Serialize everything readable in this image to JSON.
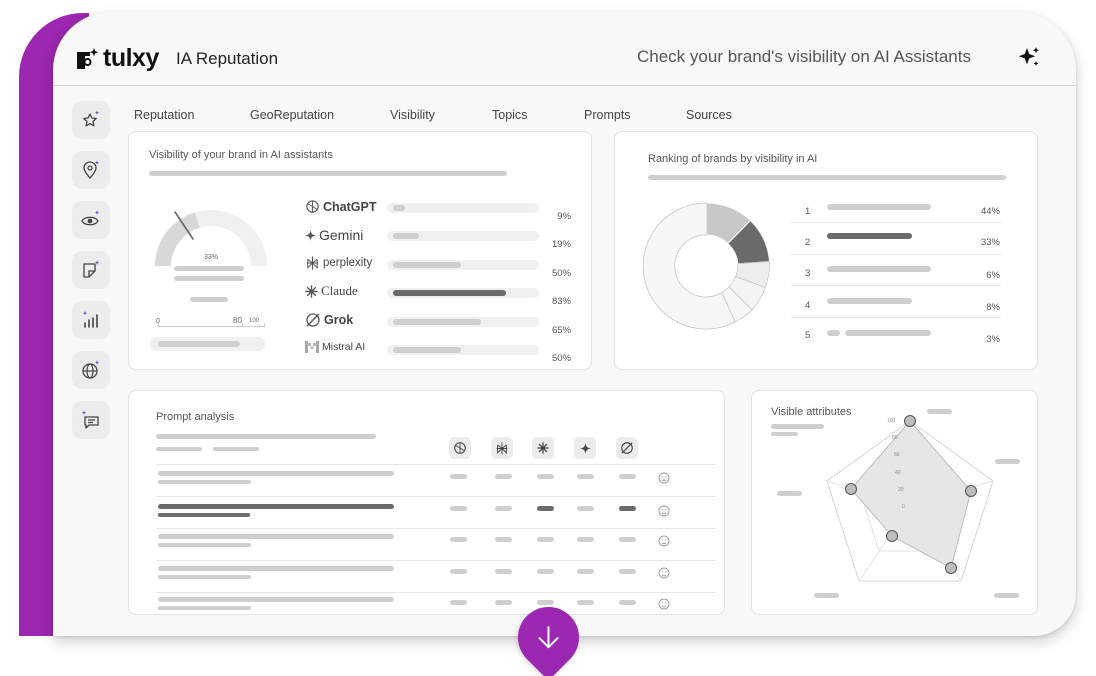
{
  "brand": {
    "logo_text": "tulxy",
    "product_name": "IA Reputation",
    "tagline": "Check your brand's visibility on AI Assistants",
    "accent_color": "#9c27b0"
  },
  "sidebar": {
    "items": [
      {
        "icon": "star-sparkle-icon"
      },
      {
        "icon": "location-pin-icon"
      },
      {
        "icon": "eye-icon"
      },
      {
        "icon": "sticker-icon"
      },
      {
        "icon": "bar-chart-icon"
      },
      {
        "icon": "globe-icon"
      },
      {
        "icon": "chat-icon"
      }
    ]
  },
  "tabs": [
    "Reputation",
    "GeoReputation",
    "Visibility",
    "Topics",
    "Prompts",
    "Sources"
  ],
  "visibility_card": {
    "title": "Visibility of your brand in AI assistants",
    "gauge": {
      "value_label": "33%",
      "scale_min": "0",
      "scale_mark": "80",
      "scale_max": "100"
    },
    "assistants": [
      {
        "name": "ChatGPT",
        "icon": "chatgpt-icon",
        "percent": "9%",
        "value": 9
      },
      {
        "name": "Gemini",
        "icon": "gemini-icon",
        "percent": "19%",
        "value": 19
      },
      {
        "name": "perplexity",
        "icon": "perplexity-icon",
        "percent": "50%",
        "value": 50
      },
      {
        "name": "Claude",
        "icon": "claude-icon",
        "percent": "83%",
        "value": 83
      },
      {
        "name": "Grok",
        "icon": "grok-icon",
        "percent": "65%",
        "value": 65
      },
      {
        "name": "Mistral AI",
        "icon": "mistral-icon",
        "percent": "50%",
        "value": 50
      }
    ]
  },
  "ranking_card": {
    "title": "Ranking of brands by visibility in AI",
    "rows": [
      {
        "rank": "1",
        "percent": "44%"
      },
      {
        "rank": "2",
        "percent": "33%"
      },
      {
        "rank": "3",
        "percent": "6%"
      },
      {
        "rank": "4",
        "percent": "8%"
      },
      {
        "rank": "5",
        "percent": "3%"
      }
    ]
  },
  "prompt_card": {
    "title": "Prompt analysis",
    "tools": [
      "chatgpt-icon",
      "perplexity-icon",
      "claude-icon",
      "gemini-icon",
      "grok-icon"
    ],
    "rows": [
      {
        "sentiment": "sad-face-icon"
      },
      {
        "sentiment": "smile-face-icon"
      },
      {
        "sentiment": "neutral-face-icon"
      },
      {
        "sentiment": "smile-face-icon"
      },
      {
        "sentiment": "smile-face-icon"
      }
    ]
  },
  "attributes_card": {
    "title": "Visible attributes",
    "scale_labels": [
      "100",
      "80",
      "60",
      "40",
      "20",
      "0"
    ]
  }
}
